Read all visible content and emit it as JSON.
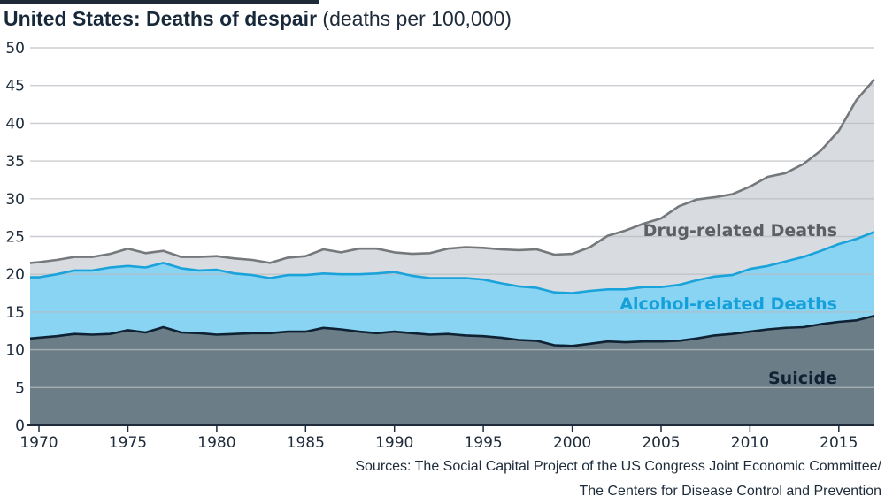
{
  "header": {
    "title_bold": "United States: Deaths of despair",
    "title_unit": "(deaths per 100,000)"
  },
  "chart_data": {
    "type": "area",
    "stacked": true,
    "title": "United States: Deaths of despair",
    "ylabel": "deaths per 100,000",
    "xlim": [
      1969.5,
      2017
    ],
    "ylim": [
      0,
      50
    ],
    "y_ticks": [
      0,
      5,
      10,
      15,
      20,
      25,
      30,
      35,
      40,
      45,
      50
    ],
    "x_ticks": [
      1970,
      1975,
      1980,
      1985,
      1990,
      1995,
      2000,
      2005,
      2010,
      2015
    ],
    "grid": true,
    "x": [
      1969.5,
      1970,
      1971,
      1972,
      1973,
      1974,
      1975,
      1976,
      1977,
      1978,
      1979,
      1980,
      1981,
      1982,
      1983,
      1984,
      1985,
      1986,
      1987,
      1988,
      1989,
      1990,
      1991,
      1992,
      1993,
      1994,
      1995,
      1996,
      1997,
      1998,
      1999,
      2000,
      2001,
      2002,
      2003,
      2004,
      2005,
      2006,
      2007,
      2008,
      2009,
      2010,
      2011,
      2012,
      2013,
      2014,
      2015,
      2016,
      2017
    ],
    "series": [
      {
        "name": "Suicide",
        "color": "#6b7e87",
        "line_color": "#0f2233",
        "label_color": "#0f2233",
        "cumulative": [
          11.5,
          11.6,
          11.8,
          12.1,
          12.0,
          12.1,
          12.6,
          12.3,
          13.0,
          12.3,
          12.2,
          12.0,
          12.1,
          12.2,
          12.2,
          12.4,
          12.4,
          12.9,
          12.7,
          12.4,
          12.2,
          12.4,
          12.2,
          12.0,
          12.1,
          11.9,
          11.8,
          11.6,
          11.3,
          11.2,
          10.6,
          10.5,
          10.8,
          11.1,
          11.0,
          11.1,
          11.1,
          11.2,
          11.5,
          11.9,
          12.1,
          12.4,
          12.7,
          12.9,
          13.0,
          13.4,
          13.7,
          13.9,
          14.5
        ]
      },
      {
        "name": "Alcohol-related Deaths",
        "color": "#88d4f2",
        "line_color": "#1aa3db",
        "label_color": "#16a0db",
        "cumulative": [
          19.6,
          19.6,
          20.0,
          20.5,
          20.5,
          20.9,
          21.1,
          20.9,
          21.5,
          20.8,
          20.5,
          20.6,
          20.1,
          19.9,
          19.5,
          19.9,
          19.9,
          20.1,
          20.0,
          20.0,
          20.1,
          20.3,
          19.8,
          19.5,
          19.5,
          19.5,
          19.3,
          18.8,
          18.4,
          18.2,
          17.6,
          17.5,
          17.8,
          18.0,
          18.0,
          18.3,
          18.3,
          18.6,
          19.2,
          19.7,
          19.9,
          20.7,
          21.1,
          21.7,
          22.3,
          23.1,
          24.0,
          24.7,
          25.6
        ]
      },
      {
        "name": "Drug-related Deaths",
        "color": "#d8dbdf",
        "line_color": "#76797c",
        "label_color": "#5d6063",
        "cumulative": [
          21.5,
          21.6,
          21.9,
          22.3,
          22.3,
          22.7,
          23.4,
          22.8,
          23.1,
          22.3,
          22.3,
          22.4,
          22.1,
          21.9,
          21.5,
          22.2,
          22.4,
          23.3,
          22.9,
          23.4,
          23.4,
          22.9,
          22.7,
          22.8,
          23.4,
          23.6,
          23.5,
          23.3,
          23.2,
          23.3,
          22.6,
          22.7,
          23.6,
          25.1,
          25.8,
          26.7,
          27.4,
          29.0,
          29.9,
          30.2,
          30.6,
          31.6,
          32.9,
          33.4,
          34.6,
          36.4,
          39.0,
          43.1,
          45.8
        ]
      }
    ]
  },
  "area_labels": [
    "Drug-related Deaths",
    "Alcohol-related Deaths",
    "Suicide"
  ],
  "sources": {
    "line1": "Sources: The Social Capital Project of the US Congress Joint Economic Committee/",
    "line2": "The Centers for Disease Control and Prevention"
  }
}
